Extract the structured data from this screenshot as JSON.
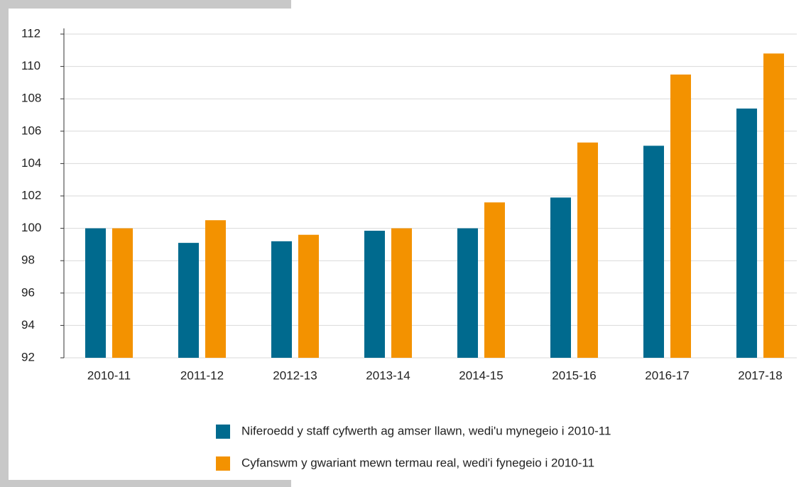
{
  "chart_data": {
    "type": "bar",
    "categories": [
      "2010-11",
      "2011-12",
      "2012-13",
      "2013-14",
      "2014-15",
      "2015-16",
      "2016-17",
      "2017-18"
    ],
    "series": [
      {
        "name": "Niferoedd y staff cyfwerth ag amser llawn, wedi'u mynegeio i 2010-11",
        "color": "#006a8e",
        "values": [
          100,
          99.1,
          99.2,
          99.85,
          100,
          101.9,
          105.1,
          107.4
        ]
      },
      {
        "name": "Cyfanswm y gwariant mewn termau real, wedi'i fynegeio i 2010-11",
        "color": "#f39200",
        "values": [
          100,
          100.5,
          99.6,
          100,
          101.6,
          105.3,
          109.5,
          110.8
        ]
      }
    ],
    "ylim": [
      92,
      112
    ],
    "yticks": [
      92,
      94,
      96,
      98,
      100,
      102,
      104,
      106,
      108,
      110,
      112
    ],
    "grid": true
  }
}
